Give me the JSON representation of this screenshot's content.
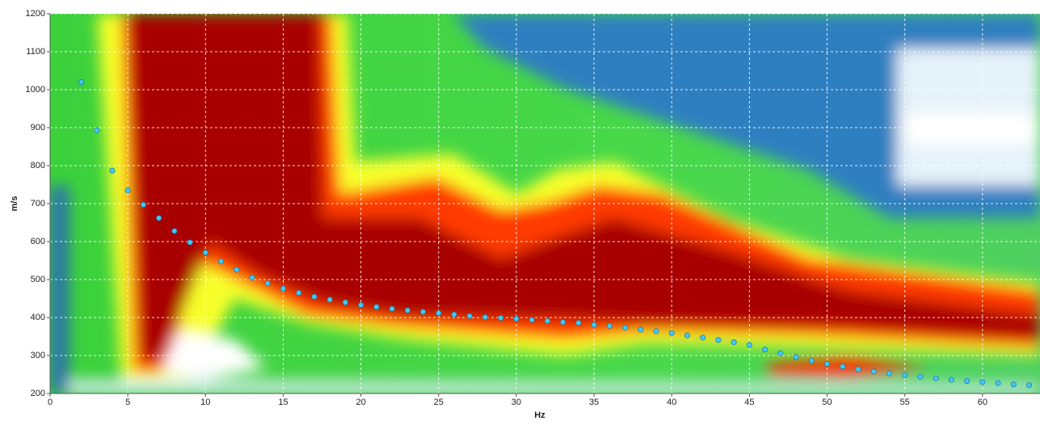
{
  "chart_data": {
    "type": "scatter",
    "x_label": "Hz",
    "y_label": "m/s",
    "x": [
      2,
      3,
      4,
      5,
      6,
      7,
      8,
      9,
      10,
      11,
      12,
      13,
      14,
      15,
      16,
      17,
      18,
      19,
      20,
      21,
      22,
      23,
      24,
      25,
      26,
      27,
      28,
      29,
      30,
      31,
      32,
      33,
      34,
      35,
      36,
      37,
      38,
      39,
      40,
      41,
      42,
      43,
      44,
      45,
      46,
      47,
      48,
      49,
      50,
      51,
      52,
      53,
      54,
      55,
      56,
      57,
      58,
      59,
      60,
      61,
      62,
      63
    ],
    "y": [
      1020,
      893,
      787,
      735,
      697,
      662,
      628,
      598,
      571,
      548,
      526,
      505,
      490,
      476,
      465,
      455,
      447,
      440,
      433,
      428,
      423,
      419,
      415,
      412,
      408,
      404,
      401,
      399,
      397,
      394,
      391,
      388,
      386,
      381,
      378,
      373,
      368,
      364,
      359,
      353,
      347,
      341,
      335,
      328,
      316,
      306,
      296,
      286,
      278,
      271,
      264,
      258,
      253,
      248,
      244,
      240,
      236,
      233,
      230,
      227,
      224,
      222
    ],
    "color": "#3fc8f4",
    "xlim": [
      0,
      63.7
    ],
    "ylim": [
      200,
      1200
    ],
    "xticks": [
      0,
      5,
      10,
      15,
      20,
      25,
      30,
      35,
      40,
      45,
      50,
      55,
      60
    ],
    "yticks": [
      200,
      300,
      400,
      500,
      600,
      700,
      800,
      900,
      1000,
      1100,
      1200
    ],
    "grid": true
  }
}
